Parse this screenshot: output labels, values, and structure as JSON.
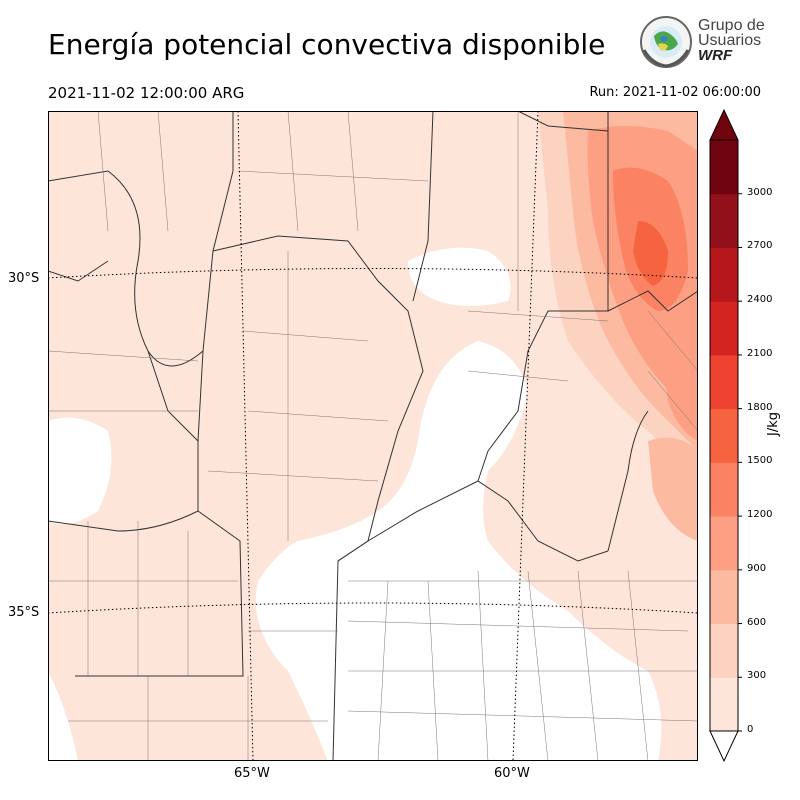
{
  "header": {
    "title": "Energía potencial convectiva disponible",
    "valid_time": "2021-11-02 12:00:00 ARG",
    "run_time": "Run: 2021-11-02 06:00:00"
  },
  "logo": {
    "line1": "Grupo de",
    "line2": "Usuarios",
    "line3": "WRF"
  },
  "map": {
    "lat_labels": [
      "30°S",
      "35°S"
    ],
    "lon_labels": [
      "65°W",
      "60°W"
    ]
  },
  "colorbar": {
    "unit": "J/kg",
    "ticks": [
      "0",
      "300",
      "600",
      "900",
      "1200",
      "1500",
      "1800",
      "2100",
      "2400",
      "2700",
      "3000"
    ],
    "colors": [
      "#fee5d9",
      "#fcd3c1",
      "#fcbba1",
      "#fc9f82",
      "#fb8263",
      "#f6633f",
      "#ee4330",
      "#d42422",
      "#b5171c",
      "#91101a",
      "#70050f"
    ],
    "extend": "both"
  }
}
